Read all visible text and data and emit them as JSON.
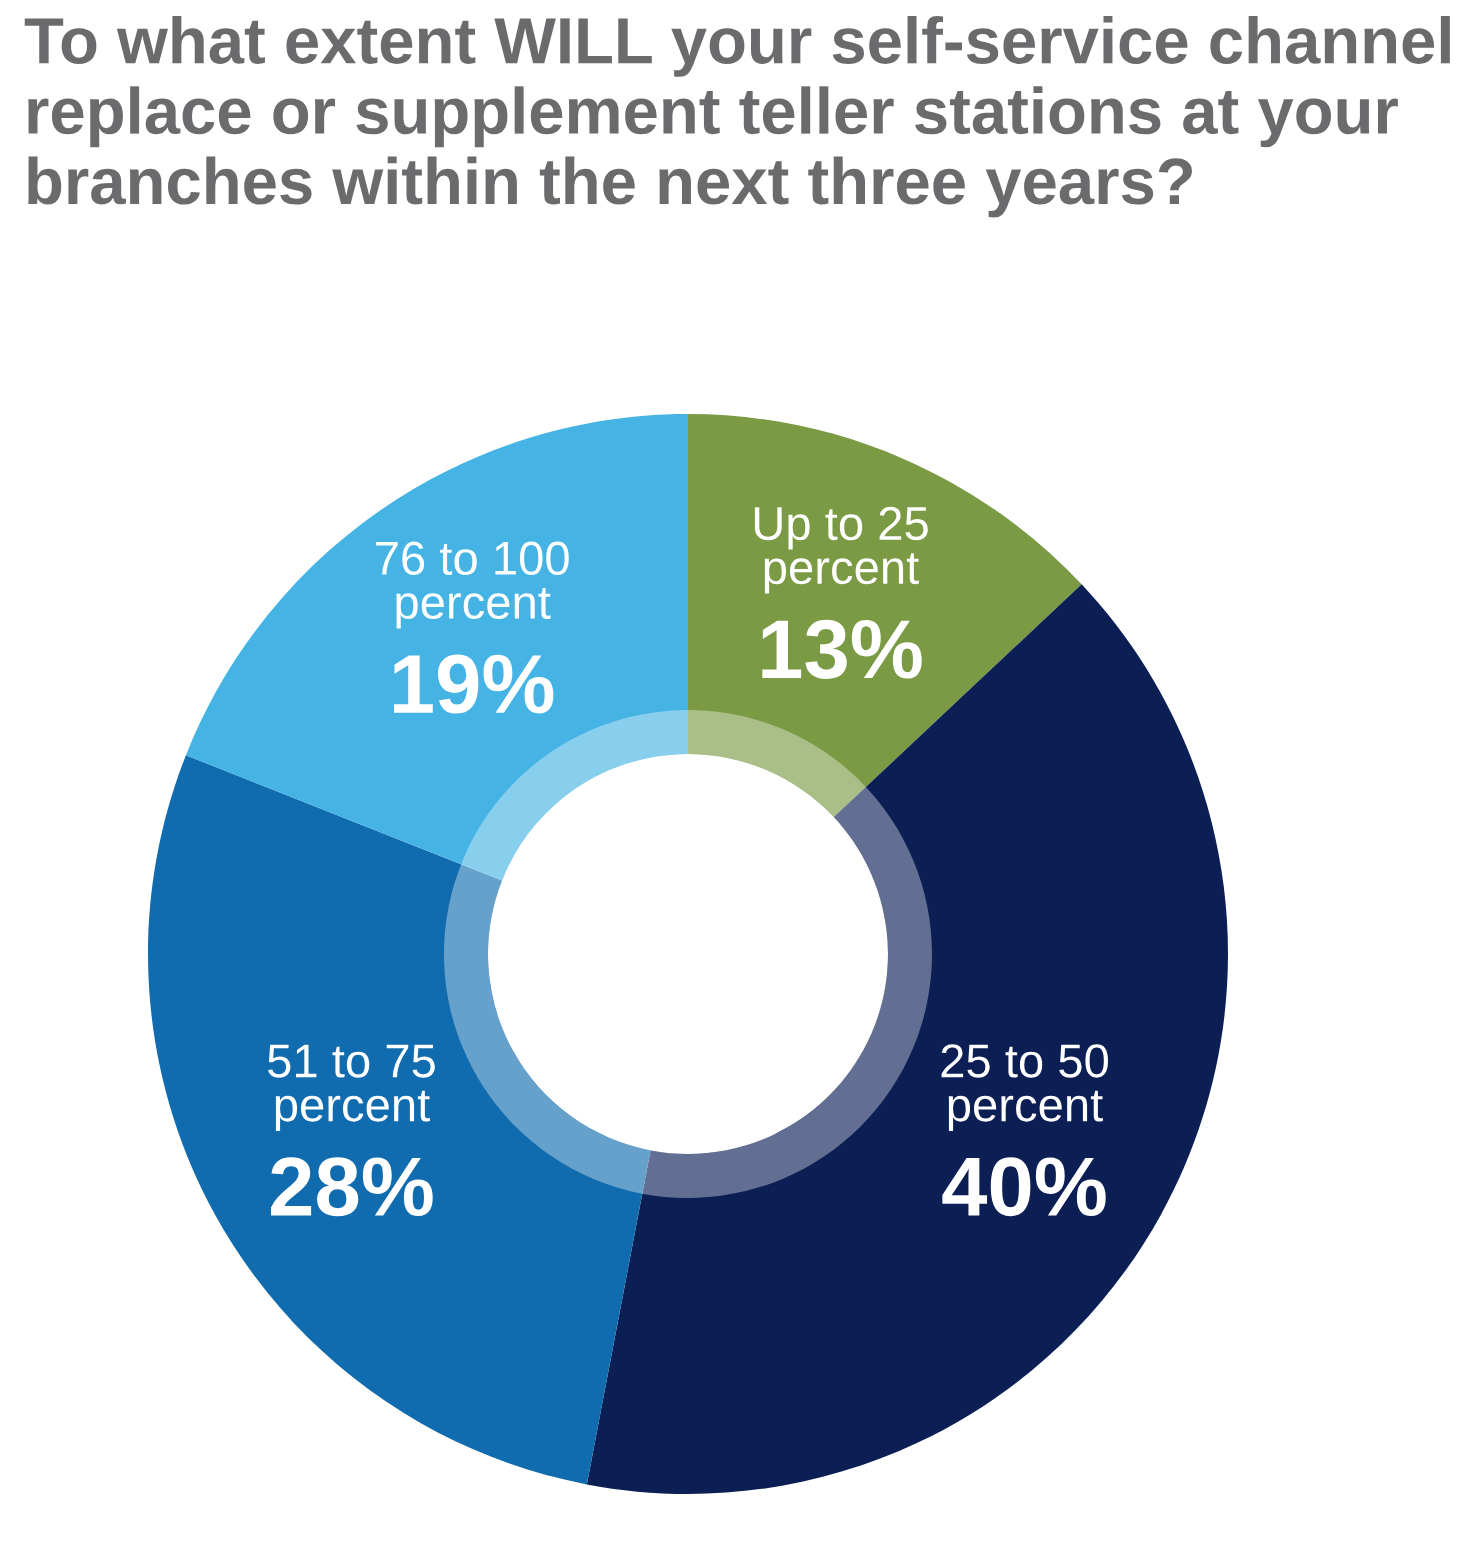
{
  "chart_data": {
    "type": "donut",
    "title": "To what extent WILL your self-service channel\nreplace or supplement teller stations at your\nbranches within the next three years?",
    "categories": [
      "Up to 25\npercent",
      "25 to 50\npercent",
      "51 to 75\npercent",
      "76 to 100\npercent"
    ],
    "values": [
      13,
      40,
      28,
      19
    ],
    "colors": [
      "#7a9a44",
      "#0c1f55",
      "#106caf",
      "#45b4e5"
    ],
    "value_labels": [
      "13%",
      "40%",
      "28%",
      "19%"
    ]
  }
}
